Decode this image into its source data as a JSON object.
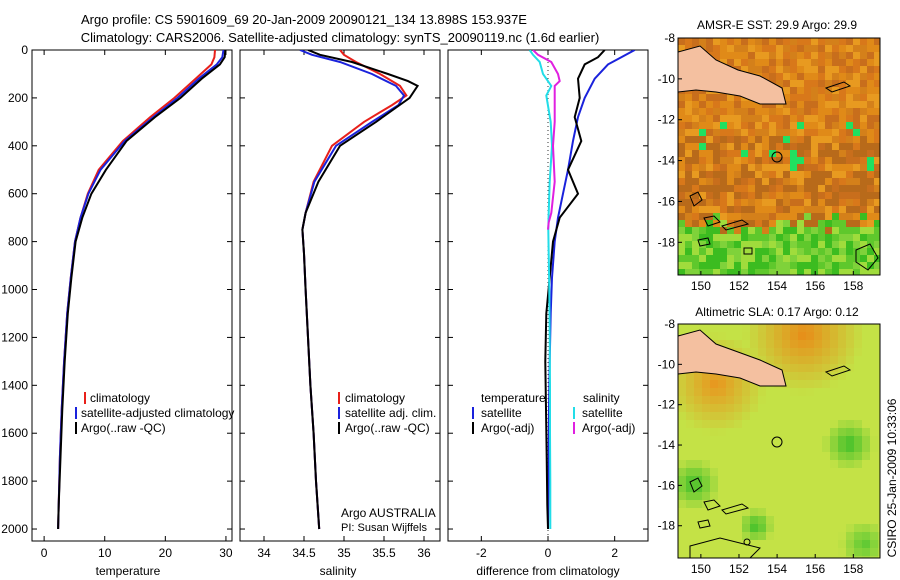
{
  "header": {
    "line1": "Argo profile: CS 5901609_69 20-Jan-2009 20090121_134 13.898S 153.937E",
    "line2": "Climatology: CARS2006. Satellite-adjusted climatology: synTS_20090119.nc (1.6d earlier)"
  },
  "footer_text": "CSIRO 25-Jan-2009 10:33:06",
  "colors": {
    "climatology": "#e8201a",
    "satellite": "#1a22dc",
    "argo": "#000000",
    "salinity_satellite": "#22dde8",
    "salinity_argo": "#e020e0"
  },
  "chart_data": [
    {
      "type": "line",
      "xlabel": "temperature",
      "ylabel": "",
      "xlim": [
        -2,
        31
      ],
      "ylim": [
        2050,
        0
      ],
      "xticks": [
        0,
        10,
        20,
        30
      ],
      "yticks": [
        0,
        200,
        400,
        600,
        800,
        1000,
        1200,
        1400,
        1600,
        1800,
        2000
      ],
      "legend": {
        "placement": "lower-center",
        "entries": [
          "climatology",
          "satellite-adjusted climatology",
          "Argo(..raw -QC)"
        ]
      },
      "series": [
        {
          "name": "climatology",
          "color": "#e8201a",
          "x": [
            28.2,
            28.1,
            27.6,
            25.0,
            21.5,
            17.5,
            13.0,
            9.0,
            7.2,
            6.0,
            5.1,
            4.4,
            3.8,
            3.3,
            2.9,
            2.6,
            2.4,
            2.3
          ],
          "y": [
            0,
            30,
            60,
            120,
            200,
            280,
            380,
            500,
            600,
            700,
            800,
            950,
            1100,
            1300,
            1500,
            1700,
            1900,
            2000
          ]
        },
        {
          "name": "satellite-adjusted climatology",
          "color": "#1a22dc",
          "x": [
            29.6,
            29.4,
            28.5,
            25.5,
            22.0,
            18.0,
            13.3,
            9.3,
            7.3,
            6.0,
            5.1,
            4.4,
            3.8,
            3.3,
            2.9,
            2.6,
            2.4,
            2.3
          ],
          "y": [
            0,
            30,
            60,
            120,
            200,
            280,
            380,
            500,
            600,
            700,
            800,
            950,
            1100,
            1300,
            1500,
            1700,
            1900,
            2000
          ]
        },
        {
          "name": "Argo(..raw -QC)",
          "color": "#000000",
          "x": [
            29.9,
            29.8,
            29.0,
            26.0,
            22.5,
            18.3,
            13.6,
            10.2,
            7.8,
            6.3,
            5.2,
            4.5,
            3.9,
            3.4,
            3.0,
            2.7,
            2.4,
            2.3
          ],
          "y": [
            0,
            30,
            60,
            120,
            200,
            280,
            380,
            500,
            600,
            700,
            800,
            950,
            1100,
            1300,
            1500,
            1700,
            1900,
            2000
          ]
        }
      ]
    },
    {
      "type": "line",
      "xlabel": "salinity",
      "ylabel": "",
      "xlim": [
        33.7,
        36.2
      ],
      "ylim": [
        2050,
        0
      ],
      "xticks": [
        34,
        34.5,
        35,
        35.5,
        36
      ],
      "yticks": [
        0,
        200,
        400,
        600,
        800,
        1000,
        1200,
        1400,
        1600,
        1800,
        2000
      ],
      "legend": {
        "placement": "lower-center",
        "entries": [
          "climatology",
          "satellite adj. clim.",
          "Argo(..raw -QC)"
        ]
      },
      "annotations": [
        "Argo AUSTRALIA",
        "PI: Susan Wijffels"
      ],
      "series": [
        {
          "name": "climatology",
          "color": "#e8201a",
          "x": [
            34.95,
            35.0,
            35.15,
            35.45,
            35.7,
            35.78,
            35.6,
            35.25,
            34.85,
            34.62,
            34.52,
            34.48,
            34.5,
            34.52,
            34.55,
            34.58,
            34.62,
            34.65,
            34.68,
            34.69
          ],
          "y": [
            0,
            20,
            50,
            100,
            150,
            190,
            230,
            300,
            400,
            550,
            680,
            750,
            850,
            1000,
            1200,
            1400,
            1600,
            1800,
            1950,
            2000
          ]
        },
        {
          "name": "satellite adj. clim.",
          "color": "#1a22dc",
          "x": [
            34.45,
            34.6,
            34.95,
            35.35,
            35.65,
            35.75,
            35.68,
            35.35,
            34.9,
            34.63,
            34.52,
            34.48,
            34.5,
            34.52,
            34.55,
            34.58,
            34.62,
            34.65,
            34.68,
            34.69
          ],
          "y": [
            0,
            20,
            50,
            100,
            150,
            190,
            230,
            300,
            400,
            550,
            680,
            750,
            850,
            1000,
            1200,
            1400,
            1600,
            1800,
            1950,
            2000
          ]
        },
        {
          "name": "Argo(..raw -QC)",
          "color": "#000000",
          "x": [
            34.55,
            34.7,
            35.1,
            35.55,
            35.8,
            35.92,
            35.82,
            35.4,
            34.95,
            34.68,
            34.52,
            34.48,
            34.5,
            34.52,
            34.55,
            34.58,
            34.62,
            34.65,
            34.68,
            34.69
          ],
          "y": [
            0,
            20,
            50,
            100,
            130,
            150,
            200,
            300,
            400,
            550,
            680,
            750,
            850,
            1000,
            1200,
            1400,
            1600,
            1800,
            1950,
            2000
          ]
        }
      ]
    },
    {
      "type": "line",
      "xlabel": "difference from climatology",
      "ylabel": "",
      "xlim": [
        -3,
        3
      ],
      "ylim": [
        2050,
        0
      ],
      "xticks": [
        -2,
        0,
        2
      ],
      "yticks": [
        0,
        200,
        400,
        600,
        800,
        1000,
        1200,
        1400,
        1600,
        1800,
        2000
      ],
      "legend": {
        "placement": "lower-center",
        "groups": [
          {
            "title": "temperature",
            "entries": [
              "satellite",
              "Argo(-adj)"
            ]
          },
          {
            "title": "salinity",
            "entries": [
              "satellite",
              "Argo(-adj)"
            ]
          }
        ]
      },
      "series": [
        {
          "name": "temperature satellite",
          "color": "#1a22dc",
          "x": [
            2.6,
            2.2,
            1.8,
            1.4,
            1.1,
            0.9,
            0.75,
            0.6,
            0.45,
            0.3,
            0.2,
            0.12,
            0.08,
            0.05,
            0.03,
            0.02,
            0.01,
            0.0
          ],
          "y": [
            0,
            30,
            60,
            120,
            200,
            280,
            380,
            500,
            600,
            700,
            800,
            950,
            1100,
            1300,
            1500,
            1700,
            1900,
            2000
          ]
        },
        {
          "name": "temperature Argo(-adj)",
          "color": "#000000",
          "x": [
            1.7,
            1.5,
            1.1,
            0.9,
            0.95,
            0.8,
            1.0,
            0.6,
            0.9,
            0.35,
            0.15,
            0.05,
            -0.05,
            -0.08,
            -0.06,
            -0.04,
            -0.02,
            0.0
          ],
          "y": [
            0,
            30,
            60,
            120,
            200,
            280,
            380,
            500,
            600,
            700,
            800,
            950,
            1100,
            1300,
            1500,
            1700,
            1900,
            2000
          ]
        },
        {
          "name": "salinity satellite",
          "color": "#22dde8",
          "x": [
            -0.55,
            -0.45,
            -0.25,
            -0.15,
            0.1,
            -0.05,
            0.08,
            0.12,
            0.05,
            0.02,
            0.01,
            0.02,
            0.04,
            0.05,
            0.06,
            0.06,
            0.07,
            0.07
          ],
          "y": [
            0,
            20,
            50,
            100,
            150,
            190,
            300,
            400,
            550,
            680,
            750,
            850,
            1000,
            1200,
            1400,
            1600,
            1800,
            2000
          ]
        },
        {
          "name": "salinity Argo(-adj)",
          "color": "#e020e0",
          "x": [
            -0.45,
            -0.3,
            0.1,
            0.3,
            0.35,
            0.2,
            0.2,
            0.15,
            0.2,
            0.1,
            0.02,
            0.0
          ],
          "y": [
            0,
            20,
            50,
            100,
            130,
            150,
            300,
            400,
            550,
            680,
            720,
            750
          ]
        }
      ]
    },
    {
      "type": "heatmap",
      "title": "AMSR-E SST: 29.9 Argo: 29.9",
      "xticks": [
        150,
        152,
        154,
        156,
        158
      ],
      "yticks": [
        -8,
        -10,
        -12,
        -14,
        -16,
        -18
      ],
      "xlim": [
        148.8,
        159.4
      ],
      "ylim": [
        -19.6,
        -8
      ],
      "argo_position": {
        "lon": 153.937,
        "lat": -13.898
      }
    },
    {
      "type": "heatmap",
      "title": "Altimetric SLA: 0.17 Argo: 0.12",
      "xticks": [
        150,
        152,
        154,
        156,
        158
      ],
      "yticks": [
        -8,
        -10,
        -12,
        -14,
        -16,
        -18
      ],
      "xlim": [
        148.8,
        159.4
      ],
      "ylim": [
        -19.6,
        -8
      ],
      "argo_position": {
        "lon": 153.937,
        "lat": -13.898
      }
    }
  ]
}
